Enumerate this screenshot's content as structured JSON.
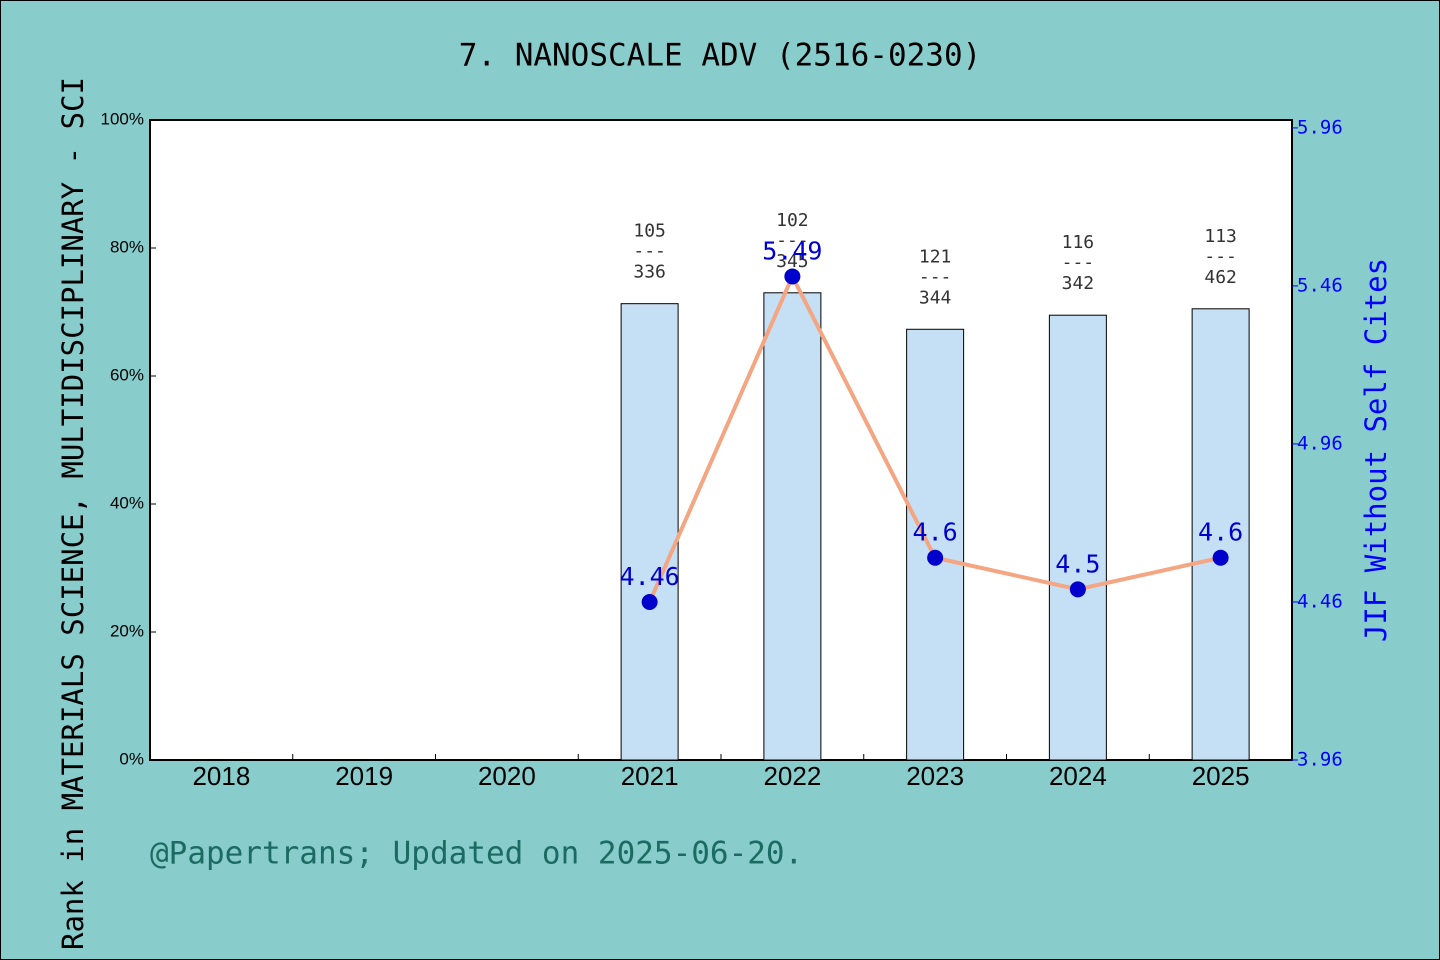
{
  "chart_data": {
    "type": "bar_line",
    "title": "7. NANOSCALE ADV (2516-0230)",
    "y_label": "Rank in MATERIALS SCIENCE, MULTIDISCIPLINARY - SCI",
    "y2_label": "JIF Without Self Cites",
    "footer": "@Papertrans; Updated on 2025-06-20.",
    "categories": [
      "2018",
      "2019",
      "2020",
      "2021",
      "2022",
      "2023",
      "2024",
      "2025"
    ],
    "series": [
      {
        "type": "bar",
        "color": "#c5dff5",
        "values": [
          null,
          null,
          null,
          71.3,
          73,
          67.3,
          69.5,
          70.5
        ]
      },
      {
        "type": "line",
        "axis": "y2",
        "color": "#f4a582",
        "marker_color": "#0000cc",
        "values": [
          null,
          null,
          null,
          4.46,
          5.49,
          4.6,
          4.5,
          4.6
        ]
      }
    ],
    "rank_fractions": [
      null,
      null,
      null,
      {
        "rank": 105,
        "total": 336
      },
      {
        "rank": 102,
        "total": 345
      },
      {
        "rank": 121,
        "total": 344
      },
      {
        "rank": 116,
        "total": 342
      },
      {
        "rank": 113,
        "total": 462
      }
    ],
    "fraction_separator": "---",
    "ylim": [
      0,
      100
    ],
    "yticks": [
      {
        "value": 0,
        "label": "0%"
      },
      {
        "value": 20,
        "label": "20%"
      },
      {
        "value": 40,
        "label": "40%"
      },
      {
        "value": 60,
        "label": "60%"
      },
      {
        "value": 80,
        "label": "80%"
      },
      {
        "value": 100,
        "label": "100%"
      }
    ],
    "y2lim": [
      3.96,
      5.985
    ],
    "y2ticks": [
      3.96,
      4.46,
      4.96,
      5.46,
      5.96
    ]
  }
}
